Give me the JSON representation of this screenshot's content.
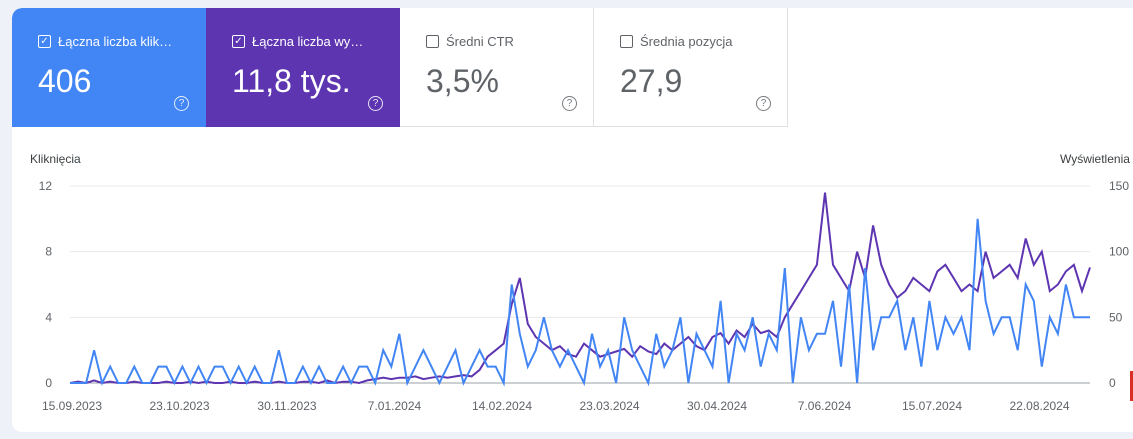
{
  "metrics": [
    {
      "label": "Łączna liczba klik…",
      "value": "406",
      "checked": true
    },
    {
      "label": "Łączna liczba wy…",
      "value": "11,8 tys.",
      "checked": true
    },
    {
      "label": "Średni CTR",
      "value": "3,5%",
      "checked": false
    },
    {
      "label": "Średnia pozycja",
      "value": "27,9",
      "checked": false
    }
  ],
  "icons": {
    "checkbox_checked": "✓",
    "help": "?"
  },
  "colors": {
    "clicks": "#4285f4",
    "impressions": "#5e35b1"
  },
  "chart_data": {
    "type": "line",
    "left_axis_label": "Kliknięcia",
    "right_axis_label": "Wyświetlenia",
    "left_ticks": [
      "0",
      "4",
      "8",
      "12"
    ],
    "right_ticks": [
      "0",
      "50",
      "100",
      "150"
    ],
    "x_tick_labels": [
      "15.09.2023",
      "23.10.2023",
      "30.11.2023",
      "7.01.2024",
      "14.02.2024",
      "23.03.2024",
      "30.04.2024",
      "7.06.2024",
      "15.07.2024",
      "22.08.2024"
    ],
    "ylim_left": [
      0,
      12
    ],
    "ylim_right": [
      0,
      150
    ],
    "grid": true,
    "series": [
      {
        "name": "Kliknięcia",
        "axis": "left",
        "values": [
          0,
          0,
          0,
          2,
          0,
          1,
          0,
          0,
          1,
          0,
          0,
          1,
          1,
          0,
          1,
          0,
          1,
          0,
          1,
          1,
          0,
          1,
          0,
          1,
          0,
          0,
          2,
          0,
          0,
          1,
          0,
          1,
          0,
          0,
          1,
          0,
          1,
          1,
          0,
          2,
          1,
          3,
          0,
          1,
          2,
          1,
          0,
          1,
          2,
          0,
          1,
          2,
          1,
          1,
          0,
          6,
          3,
          1,
          2,
          4,
          2,
          1,
          2,
          1,
          0,
          3,
          1,
          2,
          0,
          4,
          2,
          1,
          0,
          3,
          1,
          2,
          4,
          0,
          3,
          2,
          1,
          5,
          0,
          3,
          2,
          4,
          1,
          3,
          2,
          7,
          0,
          4,
          2,
          3,
          3,
          5,
          1,
          6,
          0,
          7,
          2,
          4,
          4,
          5,
          2,
          4,
          1,
          5,
          2,
          4,
          3,
          4,
          2,
          10,
          5,
          3,
          4,
          4,
          2,
          6,
          5,
          1,
          4,
          3,
          6,
          4,
          4,
          4
        ]
      },
      {
        "name": "Wyświetlenia",
        "axis": "right",
        "values": [
          0,
          1,
          0,
          2,
          0,
          1,
          0,
          0,
          1,
          0,
          0,
          0,
          1,
          0,
          0,
          1,
          0,
          1,
          0,
          0,
          1,
          0,
          0,
          1,
          0,
          0,
          1,
          0,
          0,
          1,
          1,
          0,
          2,
          0,
          1,
          1,
          0,
          2,
          3,
          4,
          3,
          4,
          4,
          5,
          3,
          4,
          5,
          4,
          5,
          6,
          5,
          10,
          20,
          25,
          30,
          60,
          80,
          45,
          35,
          30,
          25,
          28,
          22,
          20,
          30,
          25,
          20,
          22,
          24,
          26,
          20,
          28,
          24,
          22,
          30,
          25,
          30,
          35,
          28,
          25,
          35,
          38,
          30,
          40,
          35,
          45,
          38,
          40,
          35,
          50,
          60,
          70,
          80,
          90,
          145,
          90,
          80,
          70,
          100,
          80,
          120,
          90,
          75,
          65,
          70,
          80,
          75,
          70,
          85,
          90,
          80,
          70,
          75,
          70,
          100,
          80,
          85,
          90,
          80,
          110,
          90,
          100,
          70,
          75,
          85,
          90,
          70,
          88
        ]
      }
    ]
  }
}
